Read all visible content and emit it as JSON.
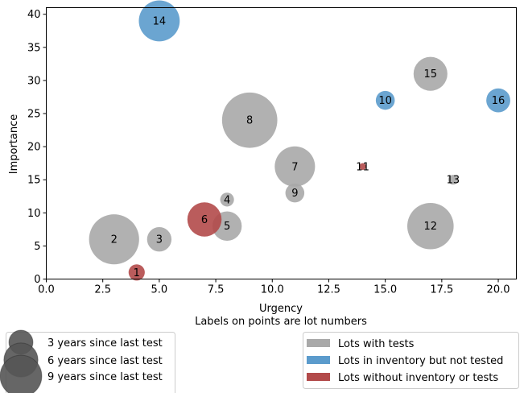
{
  "chart_data": {
    "type": "scatter",
    "xlabel": "Urgency",
    "xlabel_sub": "Labels on points are lot numbers",
    "ylabel": "Importance",
    "xlim": [
      0,
      20.8
    ],
    "ylim": [
      0,
      41
    ],
    "xticks": [
      0,
      2.5,
      5,
      7.5,
      10,
      12.5,
      15,
      17.5,
      20
    ],
    "xtick_labels": [
      "0.0",
      "2.5",
      "5.0",
      "7.5",
      "10.0",
      "12.5",
      "15.0",
      "17.5",
      "20.0"
    ],
    "yticks": [
      0,
      5,
      10,
      15,
      20,
      25,
      30,
      35,
      40
    ],
    "ytick_labels": [
      "0",
      "5",
      "10",
      "15",
      "20",
      "25",
      "30",
      "35",
      "40"
    ],
    "grid": false,
    "categories": {
      "tested": {
        "label": "Lots with tests",
        "color": "#a9a9a9"
      },
      "inventory": {
        "label": "Lots in inventory but not tested",
        "color": "#5b9bcc"
      },
      "none": {
        "label": "Lots without inventory or tests",
        "color": "#b24a4a"
      }
    },
    "points": [
      {
        "lot": "1",
        "x": 4,
        "y": 1,
        "years": 1.1,
        "category": "none"
      },
      {
        "lot": "2",
        "x": 3,
        "y": 6,
        "years": 10.5,
        "category": "tested"
      },
      {
        "lot": "3",
        "x": 5,
        "y": 6,
        "years": 2.5,
        "category": "tested"
      },
      {
        "lot": "4",
        "x": 8,
        "y": 12,
        "years": 0.8,
        "category": "tested"
      },
      {
        "lot": "5",
        "x": 8,
        "y": 8,
        "years": 3.6,
        "category": "tested"
      },
      {
        "lot": "6",
        "x": 7,
        "y": 9,
        "years": 4.9,
        "category": "none"
      },
      {
        "lot": "7",
        "x": 11,
        "y": 17,
        "years": 6.8,
        "category": "tested"
      },
      {
        "lot": "8",
        "x": 9,
        "y": 24,
        "years": 12.8,
        "category": "tested"
      },
      {
        "lot": "9",
        "x": 11,
        "y": 13,
        "years": 1.5,
        "category": "tested"
      },
      {
        "lot": "10",
        "x": 15,
        "y": 27,
        "years": 1.5,
        "category": "inventory"
      },
      {
        "lot": "11",
        "x": 14,
        "y": 17,
        "years": 0.2,
        "category": "none"
      },
      {
        "lot": "12",
        "x": 17,
        "y": 8,
        "years": 9.0,
        "category": "tested"
      },
      {
        "lot": "13",
        "x": 18,
        "y": 15,
        "years": 0.4,
        "category": "tested"
      },
      {
        "lot": "14",
        "x": 5,
        "y": 39,
        "years": 7.0,
        "category": "inventory"
      },
      {
        "lot": "15",
        "x": 17,
        "y": 31,
        "years": 4.8,
        "category": "tested"
      },
      {
        "lot": "16",
        "x": 20,
        "y": 27,
        "years": 2.4,
        "category": "inventory"
      }
    ],
    "size_legend": [
      {
        "years": 3,
        "label": "3 years since last test"
      },
      {
        "years": 6,
        "label": "6 years since last test"
      },
      {
        "years": 9,
        "label": "9 years since last test"
      }
    ],
    "size_legend_color": "#555555",
    "legend_placement": "bottom"
  }
}
